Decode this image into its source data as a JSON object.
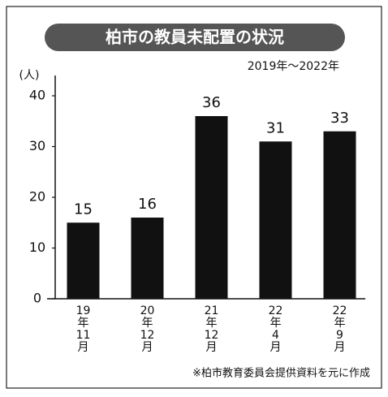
{
  "chart_data": {
    "type": "bar",
    "title": "柏市の教員未配置の状況",
    "subtitle": "2019年～2022年",
    "y_label": "(人)",
    "categories": [
      "19年11月",
      "20年12月",
      "21年12月",
      "22年4月",
      "22年9月"
    ],
    "values": [
      15,
      16,
      36,
      31,
      33
    ],
    "color": "#111111",
    "ylim": [
      0,
      44
    ],
    "yticks": [
      0,
      10,
      20,
      30,
      40
    ],
    "grid": false,
    "source": "※柏市教育委員会提供資料を元に作成"
  }
}
